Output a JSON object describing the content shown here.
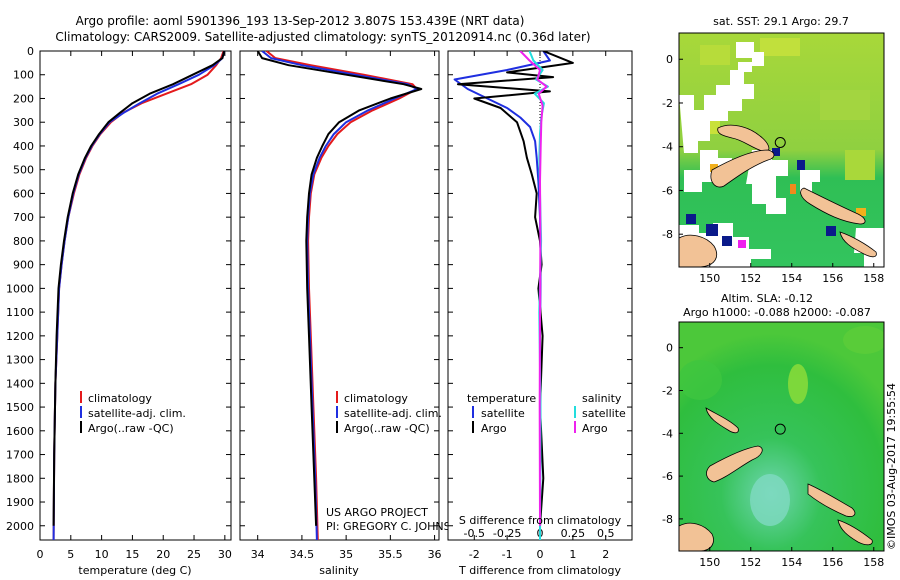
{
  "header": {
    "title_line1": "Argo profile: aoml 5901396_193 13-Sep-2012 3.807S 153.439E (NRT data)",
    "title_line2": "Climatology: CARS2009. Satellite-adjusted climatology: synTS_20120914.nc (0.36d later)"
  },
  "colors": {
    "climatology": "#e41a1c",
    "satellite": "#1f2fe0",
    "argo": "#000000",
    "salinity_satellite": "#22dddd",
    "salinity_argo": "#ee22ee",
    "land": "#f2c296",
    "ocean_green": "#2fbf4a",
    "warm_green": "#8fd13a"
  },
  "chart_data": [
    {
      "type": "line",
      "panel": "temperature",
      "xlabel": "temperature (deg C)",
      "ylabel": "",
      "xlim": [
        0,
        31
      ],
      "ylim": [
        2060,
        0
      ],
      "xticks": [
        "0",
        "5",
        "10",
        "15",
        "20",
        "25",
        "30"
      ],
      "xtick_values": [
        0,
        5,
        10,
        15,
        20,
        25,
        30
      ],
      "yticks": [
        "0",
        "100",
        "200",
        "300",
        "400",
        "500",
        "600",
        "700",
        "800",
        "900",
        "1000",
        "1100",
        "1200",
        "1300",
        "1400",
        "1500",
        "1600",
        "1700",
        "1800",
        "1900",
        "2000"
      ],
      "ytick_values": [
        0,
        100,
        200,
        300,
        400,
        500,
        600,
        700,
        800,
        900,
        1000,
        1100,
        1200,
        1300,
        1400,
        1500,
        1600,
        1700,
        1800,
        1900,
        2000
      ],
      "legend": [
        "climatology",
        "satellite-adj. clim.",
        "Argo(..raw -QC)"
      ],
      "series": [
        {
          "name": "climatology",
          "color_key": "climatology",
          "x": [
            29.8,
            29.4,
            28.6,
            27.2,
            24.5,
            20.5,
            16.5,
            13.5,
            11.5,
            9.8,
            8.5,
            7.5,
            6.4,
            5.5,
            4.6,
            4.0,
            3.5,
            3.1,
            2.8,
            2.5,
            2.3,
            2.2
          ],
          "y": [
            0,
            30,
            60,
            100,
            140,
            180,
            220,
            260,
            300,
            350,
            400,
            450,
            520,
            600,
            700,
            800,
            900,
            1000,
            1200,
            1400,
            1700,
            2060
          ]
        },
        {
          "name": "satellite-adj. clim.",
          "color_key": "satellite",
          "x": [
            29.9,
            29.6,
            28.3,
            25.8,
            22.5,
            19.0,
            16.2,
            13.6,
            11.3,
            9.7,
            8.4,
            7.4,
            6.3,
            5.4,
            4.6,
            4.0,
            3.5,
            3.1,
            2.8,
            2.5,
            2.3,
            2.2
          ],
          "y": [
            0,
            30,
            60,
            100,
            140,
            180,
            220,
            260,
            300,
            350,
            400,
            450,
            520,
            600,
            700,
            800,
            900,
            1000,
            1200,
            1400,
            1700,
            2060
          ]
        },
        {
          "name": "Argo(..raw -QC)",
          "color_key": "argo",
          "x": [
            29.9,
            29.6,
            28.0,
            24.8,
            21.6,
            17.8,
            15.0,
            13.0,
            11.1,
            9.6,
            8.3,
            7.3,
            6.2,
            5.3,
            4.5,
            3.9,
            3.4,
            3.0,
            2.7,
            2.5,
            2.3,
            2.2
          ],
          "y": [
            0,
            30,
            60,
            100,
            140,
            180,
            220,
            260,
            300,
            350,
            400,
            450,
            520,
            600,
            700,
            800,
            900,
            1000,
            1200,
            1400,
            1700,
            2000
          ]
        }
      ]
    },
    {
      "type": "line",
      "panel": "salinity",
      "xlabel": "salinity",
      "ylabel": "",
      "xlim": [
        33.8,
        36.05
      ],
      "ylim": [
        2060,
        0
      ],
      "xticks": [
        "34",
        "34.5",
        "35",
        "35.5",
        "36"
      ],
      "xtick_values": [
        34,
        34.5,
        35,
        35.5,
        36
      ],
      "legend": [
        "climatology",
        "satellite-adj. clim.",
        "Argo(..raw -QC)"
      ],
      "series": [
        {
          "name": "climatology",
          "color_key": "climatology",
          "x": [
            34.1,
            34.2,
            34.6,
            35.2,
            35.75,
            35.8,
            35.6,
            35.3,
            35.05,
            34.9,
            34.8,
            34.72,
            34.64,
            34.6,
            34.58,
            34.57,
            34.58,
            34.6,
            34.63,
            34.66,
            34.68
          ],
          "y": [
            0,
            30,
            60,
            100,
            140,
            160,
            200,
            250,
            300,
            350,
            400,
            450,
            520,
            600,
            700,
            800,
            1000,
            1200,
            1500,
            1800,
            2060
          ]
        },
        {
          "name": "satellite-adj. clim.",
          "color_key": "satellite",
          "x": [
            34.05,
            34.15,
            34.5,
            35.1,
            35.7,
            35.8,
            35.55,
            35.25,
            35.0,
            34.86,
            34.77,
            34.7,
            34.63,
            34.59,
            34.57,
            34.56,
            34.57,
            34.59,
            34.62,
            34.65,
            34.67
          ],
          "y": [
            0,
            30,
            60,
            100,
            140,
            160,
            200,
            250,
            300,
            350,
            400,
            450,
            520,
            600,
            700,
            800,
            1000,
            1200,
            1500,
            1800,
            2060
          ]
        },
        {
          "name": "Argo(..raw -QC)",
          "color_key": "argo",
          "x": [
            34.0,
            34.05,
            34.35,
            35.0,
            35.65,
            35.85,
            35.5,
            35.15,
            34.92,
            34.8,
            34.73,
            34.67,
            34.61,
            34.58,
            34.56,
            34.55,
            34.56,
            34.58,
            34.61,
            34.64,
            34.66
          ],
          "y": [
            0,
            30,
            60,
            100,
            140,
            160,
            200,
            250,
            300,
            350,
            400,
            450,
            520,
            600,
            700,
            800,
            1000,
            1200,
            1500,
            1800,
            2000
          ]
        }
      ]
    },
    {
      "type": "line",
      "panel": "difference",
      "xlabel": "T difference from climatology",
      "top_label": "S difference from climatology",
      "xlim": [
        -2.8,
        2.8
      ],
      "ylim": [
        2060,
        0
      ],
      "xticks": [
        "-2",
        "-1",
        "0",
        "1",
        "2"
      ],
      "xtick_values": [
        -2,
        -1,
        0,
        1,
        2
      ],
      "top_xticks": [
        "-0.5",
        "-0.25",
        "0",
        "0.25",
        "0.5"
      ],
      "top_xtick_values": [
        -0.5,
        -0.25,
        0,
        0.25,
        0.5
      ],
      "s_scale": 4,
      "legend_temperature_heading": "temperature",
      "legend_salinity_heading": "salinity",
      "legend_temperature": [
        "satellite",
        "Argo"
      ],
      "legend_salinity": [
        "satellite",
        "Argo"
      ],
      "series": [
        {
          "name": "T satellite",
          "color_key": "satellite",
          "x": [
            0.1,
            0.3,
            -1.0,
            -2.6,
            -2.2,
            -1.6,
            -1.0,
            -0.6,
            -0.3,
            -0.15,
            -0.1,
            -0.05,
            0.0,
            0.02,
            0.0,
            0.01,
            0.0
          ],
          "y": [
            0,
            40,
            80,
            120,
            160,
            200,
            240,
            280,
            320,
            380,
            450,
            550,
            700,
            900,
            1200,
            1600,
            2060
          ]
        },
        {
          "name": "T Argo",
          "color_key": "argo",
          "x": [
            0.1,
            1.0,
            -1.0,
            0.4,
            -2.5,
            0.3,
            -2.0,
            -1.2,
            -0.7,
            -0.5,
            -0.4,
            -0.25,
            -0.1,
            -0.15,
            0.0,
            0.05,
            -0.05,
            0.08,
            0.0,
            0.1,
            0.0
          ],
          "y": [
            0,
            50,
            90,
            110,
            140,
            170,
            200,
            240,
            300,
            380,
            450,
            520,
            600,
            700,
            800,
            900,
            1000,
            1200,
            1500,
            1800,
            2000
          ]
        },
        {
          "name": "S satellite",
          "color_key": "salinity_satellite",
          "x": [
            -0.08,
            -0.05,
            0.02,
            -0.03,
            0.06,
            -0.04,
            0.03,
            0.01,
            0.0,
            -0.005,
            0.0,
            0.008,
            -0.005,
            0.004,
            0.0
          ],
          "y": [
            0,
            40,
            80,
            120,
            150,
            180,
            220,
            280,
            350,
            450,
            600,
            800,
            1100,
            1500,
            2060
          ]
        },
        {
          "name": "S Argo",
          "color_key": "salinity_argo",
          "x": [
            -0.15,
            -0.08,
            0.0,
            -0.02,
            0.05,
            -0.01,
            0.02,
            0.01,
            0.005,
            0.0,
            0.003,
            0.0,
            -0.002,
            0.0
          ],
          "y": [
            0,
            40,
            80,
            120,
            150,
            180,
            230,
            300,
            400,
            550,
            800,
            1100,
            1500,
            2000
          ]
        }
      ]
    },
    {
      "type": "heatmap",
      "panel": "sst_map",
      "title": "sat. SST: 29.1 Argo: 29.7",
      "xlim": [
        148.5,
        158.5
      ],
      "ylim": [
        -9.5,
        1.2
      ],
      "xticks": [
        "150",
        "152",
        "154",
        "156",
        "158"
      ],
      "xtick_values": [
        150,
        152,
        154,
        156,
        158
      ],
      "yticks": [
        "0",
        "-2",
        "-4",
        "-6",
        "-8"
      ],
      "ytick_values": [
        0,
        -2,
        -4,
        -6,
        -8
      ],
      "argo_lon": 153.439,
      "argo_lat": -3.807
    },
    {
      "type": "heatmap",
      "panel": "sla_map",
      "title_line1": "Altim. SLA: -0.12",
      "title_line2": "Argo h1000: -0.088 h2000: -0.087",
      "xlim": [
        148.5,
        158.5
      ],
      "ylim": [
        -9.5,
        1.2
      ],
      "xticks": [
        "150",
        "152",
        "154",
        "156",
        "158"
      ],
      "xtick_values": [
        150,
        152,
        154,
        156,
        158
      ],
      "yticks": [
        "0",
        "-2",
        "-4",
        "-6",
        "-8"
      ],
      "ytick_values": [
        0,
        -2,
        -4,
        -6,
        -8
      ],
      "argo_lon": 153.439,
      "argo_lat": -3.807
    }
  ],
  "annotations": {
    "project_line1": "US ARGO PROJECT",
    "project_line2": "PI: GREGORY C. JOHNSON",
    "side_stamp": "©IMOS 03-Aug-2017 19:55:54"
  }
}
